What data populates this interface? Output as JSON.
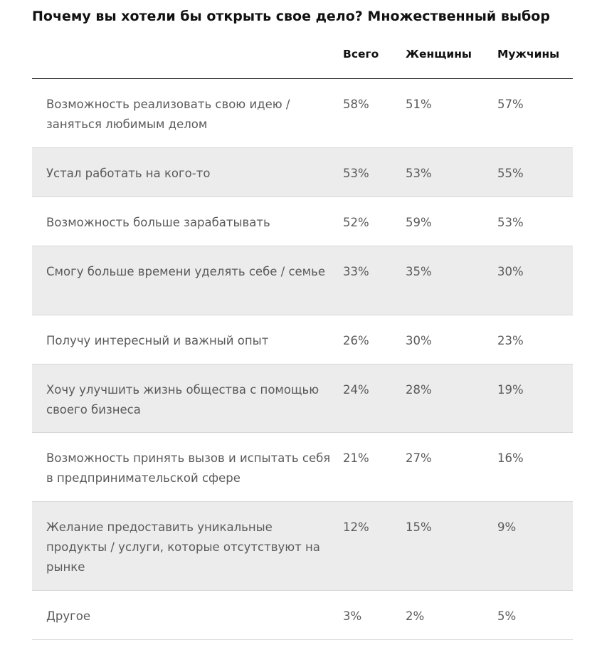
{
  "title": "Почему вы хотели бы открыть свое дело? Множественный выбор",
  "columns": {
    "total": "Всего",
    "women": "Женщины",
    "men": "Мужчины"
  },
  "rows": [
    {
      "label": "Возможность реализовать свою идею / заняться любимым делом",
      "total": "58%",
      "women": "51%",
      "men": "57%"
    },
    {
      "label": "Устал работать на кого-то",
      "total": "53%",
      "women": "53%",
      "men": "55%"
    },
    {
      "label": "Возможность больше зарабатывать",
      "total": "52%",
      "women": "59%",
      "men": "53%"
    },
    {
      "label": "Смогу больше времени уделять себе / семье",
      "total": "33%",
      "women": "35%",
      "men": "30%"
    },
    {
      "label": "Получу интересный и важный опыт",
      "total": "26%",
      "women": "30%",
      "men": "23%"
    },
    {
      "label": "Хочу улучшить жизнь общества с помощью своего бизнеса",
      "total": "24%",
      "women": "28%",
      "men": "19%"
    },
    {
      "label": "Возможность принять вызов и испытать себя в предпринимательской сфере",
      "total": "21%",
      "women": "27%",
      "men": "16%"
    },
    {
      "label": "Желание предоставить уникальные продукты / услуги, которые отсутствуют на рынке",
      "total": "12%",
      "women": "15%",
      "men": "9%"
    },
    {
      "label": "Другое",
      "total": "3%",
      "women": "2%",
      "men": "5%"
    }
  ],
  "chart_data": {
    "type": "table",
    "title": "Почему вы хотели бы открыть свое дело? Множественный выбор",
    "columns": [
      "Всего",
      "Женщины",
      "Мужчины"
    ],
    "categories": [
      "Возможность реализовать свою идею / заняться любимым делом",
      "Устал работать на кого-то",
      "Возможность больше зарабатывать",
      "Смогу больше времени уделять себе / семье",
      "Получу интересный и важный опыт",
      "Хочу улучшить жизнь общества с помощью своего бизнеса",
      "Возможность принять вызов и испытать себя в предпринимательской сфере",
      "Желание предоставить уникальные продукты / услуги, которые отсутствуют на рынке",
      "Другое"
    ],
    "series": [
      {
        "name": "Всего",
        "values": [
          58,
          53,
          52,
          33,
          26,
          24,
          21,
          12,
          3
        ]
      },
      {
        "name": "Женщины",
        "values": [
          51,
          53,
          59,
          35,
          30,
          28,
          27,
          15,
          2
        ]
      },
      {
        "name": "Мужчины",
        "values": [
          57,
          55,
          53,
          30,
          23,
          19,
          16,
          9,
          5
        ]
      }
    ],
    "unit": "%"
  }
}
